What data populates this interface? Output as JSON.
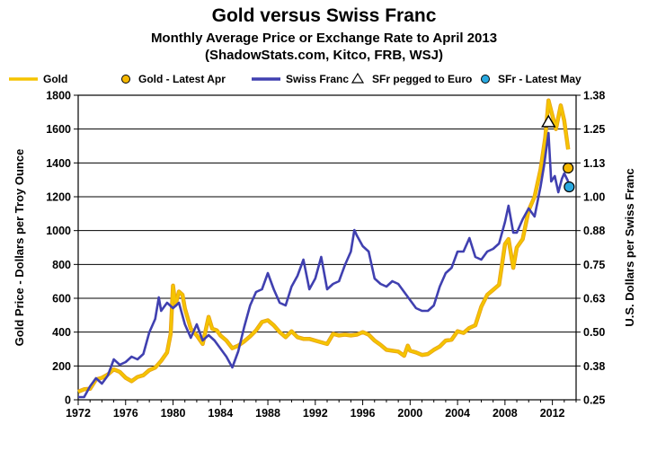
{
  "chart_data": {
    "type": "line",
    "title": "Gold versus Swiss Franc",
    "subtitle_1": "Monthly Average Price or Exchange Rate to April 2013",
    "subtitle_2": "(ShadowStats.com, Kitco, FRB, WSJ)",
    "ylabel_left": "Gold Price - Dollars per Troy Ounce",
    "ylabel_right": "U.S. Dollars per Swiss Franc",
    "ylim_left": [
      0,
      1800
    ],
    "ylim_right": [
      0.25,
      1.38
    ],
    "xlim": [
      1972,
      2014
    ],
    "x_ticks": [
      "1972",
      "1976",
      "1980",
      "1984",
      "1988",
      "1992",
      "1996",
      "2000",
      "2004",
      "2008",
      "2012"
    ],
    "y_ticks_left": [
      "0",
      "200",
      "400",
      "600",
      "800",
      "1000",
      "1200",
      "1400",
      "1600",
      "1800"
    ],
    "y_ticks_right": [
      "0.25",
      "0.38",
      "0.50",
      "0.63",
      "0.75",
      "0.88",
      "1.00",
      "1.13",
      "1.25",
      "1.38"
    ],
    "grid": "horizontal",
    "legend_placement": "top",
    "colors": {
      "gold": "#f5c400",
      "gold_outline": "#e8a317",
      "franc": "#4040b0",
      "latest_gold": "#f5b800",
      "latest_franc": "#29a9e0"
    },
    "legend": [
      {
        "label": "Gold",
        "kind": "line",
        "color": "#f5c400"
      },
      {
        "label": "Gold - Latest Apr",
        "kind": "circle",
        "color": "#f5b800"
      },
      {
        "label": "Swiss Franc",
        "kind": "line",
        "color": "#4040b0"
      },
      {
        "label": "SFr pegged to Euro",
        "kind": "triangle",
        "color": "#ffffff"
      },
      {
        "label": "SFr - Latest May",
        "kind": "circle",
        "color": "#29a9e0"
      }
    ],
    "series": [
      {
        "name": "Gold",
        "axis": "left",
        "points": [
          [
            1972.0,
            48
          ],
          [
            1972.5,
            62
          ],
          [
            1973.0,
            65
          ],
          [
            1973.5,
            120
          ],
          [
            1974.0,
            130
          ],
          [
            1974.5,
            150
          ],
          [
            1975.0,
            180
          ],
          [
            1975.5,
            165
          ],
          [
            1976.0,
            130
          ],
          [
            1976.5,
            110
          ],
          [
            1977.0,
            135
          ],
          [
            1977.5,
            145
          ],
          [
            1978.0,
            175
          ],
          [
            1978.5,
            190
          ],
          [
            1979.0,
            230
          ],
          [
            1979.5,
            280
          ],
          [
            1979.8,
            390
          ],
          [
            1980.0,
            675
          ],
          [
            1980.2,
            560
          ],
          [
            1980.5,
            640
          ],
          [
            1980.8,
            620
          ],
          [
            1981.0,
            540
          ],
          [
            1981.5,
            420
          ],
          [
            1982.0,
            380
          ],
          [
            1982.5,
            330
          ],
          [
            1983.0,
            490
          ],
          [
            1983.3,
            420
          ],
          [
            1983.7,
            410
          ],
          [
            1984.0,
            380
          ],
          [
            1984.5,
            350
          ],
          [
            1985.0,
            305
          ],
          [
            1985.5,
            320
          ],
          [
            1986.0,
            345
          ],
          [
            1986.5,
            375
          ],
          [
            1987.0,
            410
          ],
          [
            1987.5,
            460
          ],
          [
            1988.0,
            470
          ],
          [
            1988.5,
            440
          ],
          [
            1989.0,
            400
          ],
          [
            1989.5,
            370
          ],
          [
            1990.0,
            405
          ],
          [
            1990.5,
            370
          ],
          [
            1991.0,
            360
          ],
          [
            1991.5,
            360
          ],
          [
            1992.0,
            350
          ],
          [
            1992.5,
            340
          ],
          [
            1993.0,
            330
          ],
          [
            1993.5,
            390
          ],
          [
            1994.0,
            380
          ],
          [
            1994.5,
            385
          ],
          [
            1995.0,
            380
          ],
          [
            1995.5,
            385
          ],
          [
            1996.0,
            400
          ],
          [
            1996.5,
            385
          ],
          [
            1997.0,
            350
          ],
          [
            1997.5,
            325
          ],
          [
            1998.0,
            295
          ],
          [
            1998.5,
            290
          ],
          [
            1999.0,
            285
          ],
          [
            1999.5,
            260
          ],
          [
            1999.8,
            320
          ],
          [
            2000.0,
            290
          ],
          [
            2000.5,
            280
          ],
          [
            2001.0,
            265
          ],
          [
            2001.5,
            270
          ],
          [
            2002.0,
            295
          ],
          [
            2002.5,
            315
          ],
          [
            2003.0,
            350
          ],
          [
            2003.5,
            355
          ],
          [
            2004.0,
            405
          ],
          [
            2004.5,
            395
          ],
          [
            2005.0,
            425
          ],
          [
            2005.5,
            440
          ],
          [
            2006.0,
            550
          ],
          [
            2006.5,
            620
          ],
          [
            2007.0,
            650
          ],
          [
            2007.5,
            680
          ],
          [
            2008.0,
            920
          ],
          [
            2008.3,
            950
          ],
          [
            2008.7,
            780
          ],
          [
            2009.0,
            900
          ],
          [
            2009.5,
            950
          ],
          [
            2010.0,
            1120
          ],
          [
            2010.5,
            1200
          ],
          [
            2011.0,
            1360
          ],
          [
            2011.4,
            1550
          ],
          [
            2011.67,
            1770
          ],
          [
            2012.0,
            1680
          ],
          [
            2012.3,
            1600
          ],
          [
            2012.7,
            1740
          ],
          [
            2013.0,
            1650
          ],
          [
            2013.33,
            1480
          ]
        ]
      },
      {
        "name": "Swiss Franc",
        "axis": "right",
        "points": [
          [
            1972.0,
            0.26
          ],
          [
            1972.5,
            0.26
          ],
          [
            1973.0,
            0.3
          ],
          [
            1973.5,
            0.33
          ],
          [
            1974.0,
            0.31
          ],
          [
            1974.5,
            0.34
          ],
          [
            1975.0,
            0.4
          ],
          [
            1975.5,
            0.38
          ],
          [
            1976.0,
            0.39
          ],
          [
            1976.5,
            0.41
          ],
          [
            1977.0,
            0.4
          ],
          [
            1977.5,
            0.42
          ],
          [
            1978.0,
            0.5
          ],
          [
            1978.5,
            0.55
          ],
          [
            1978.8,
            0.63
          ],
          [
            1979.0,
            0.58
          ],
          [
            1979.5,
            0.61
          ],
          [
            1980.0,
            0.59
          ],
          [
            1980.5,
            0.61
          ],
          [
            1981.0,
            0.53
          ],
          [
            1981.5,
            0.48
          ],
          [
            1982.0,
            0.53
          ],
          [
            1982.5,
            0.47
          ],
          [
            1983.0,
            0.49
          ],
          [
            1983.5,
            0.47
          ],
          [
            1984.0,
            0.44
          ],
          [
            1984.5,
            0.41
          ],
          [
            1985.0,
            0.37
          ],
          [
            1985.5,
            0.43
          ],
          [
            1986.0,
            0.52
          ],
          [
            1986.5,
            0.6
          ],
          [
            1987.0,
            0.65
          ],
          [
            1987.5,
            0.66
          ],
          [
            1988.0,
            0.72
          ],
          [
            1988.5,
            0.66
          ],
          [
            1989.0,
            0.61
          ],
          [
            1989.5,
            0.6
          ],
          [
            1990.0,
            0.67
          ],
          [
            1990.5,
            0.71
          ],
          [
            1991.0,
            0.77
          ],
          [
            1991.5,
            0.66
          ],
          [
            1992.0,
            0.7
          ],
          [
            1992.5,
            0.78
          ],
          [
            1993.0,
            0.66
          ],
          [
            1993.5,
            0.68
          ],
          [
            1994.0,
            0.69
          ],
          [
            1994.5,
            0.75
          ],
          [
            1995.0,
            0.8
          ],
          [
            1995.3,
            0.88
          ],
          [
            1995.5,
            0.86
          ],
          [
            1996.0,
            0.82
          ],
          [
            1996.5,
            0.8
          ],
          [
            1997.0,
            0.7
          ],
          [
            1997.5,
            0.68
          ],
          [
            1998.0,
            0.67
          ],
          [
            1998.5,
            0.69
          ],
          [
            1999.0,
            0.68
          ],
          [
            1999.5,
            0.65
          ],
          [
            2000.0,
            0.62
          ],
          [
            2000.5,
            0.59
          ],
          [
            2001.0,
            0.58
          ],
          [
            2001.5,
            0.58
          ],
          [
            2002.0,
            0.6
          ],
          [
            2002.5,
            0.67
          ],
          [
            2003.0,
            0.72
          ],
          [
            2003.5,
            0.74
          ],
          [
            2004.0,
            0.8
          ],
          [
            2004.5,
            0.8
          ],
          [
            2005.0,
            0.85
          ],
          [
            2005.5,
            0.78
          ],
          [
            2006.0,
            0.77
          ],
          [
            2006.5,
            0.8
          ],
          [
            2007.0,
            0.81
          ],
          [
            2007.5,
            0.83
          ],
          [
            2008.0,
            0.91
          ],
          [
            2008.3,
            0.97
          ],
          [
            2008.7,
            0.87
          ],
          [
            2009.0,
            0.87
          ],
          [
            2009.5,
            0.92
          ],
          [
            2010.0,
            0.96
          ],
          [
            2010.5,
            0.93
          ],
          [
            2011.0,
            1.04
          ],
          [
            2011.3,
            1.12
          ],
          [
            2011.67,
            1.24
          ],
          [
            2011.9,
            1.06
          ],
          [
            2012.2,
            1.08
          ],
          [
            2012.5,
            1.02
          ],
          [
            2012.8,
            1.07
          ],
          [
            2013.0,
            1.09
          ],
          [
            2013.33,
            1.06
          ]
        ]
      }
    ],
    "markers": [
      {
        "name": "Gold - Latest Apr",
        "axis": "left",
        "x": 2013.33,
        "y": 1370
      },
      {
        "name": "SFr - Latest May",
        "axis": "right",
        "x": 2013.42,
        "y": 1.04
      },
      {
        "name": "SFr pegged to Euro",
        "axis": "right",
        "x": 2011.67,
        "y": 1.28
      }
    ]
  }
}
